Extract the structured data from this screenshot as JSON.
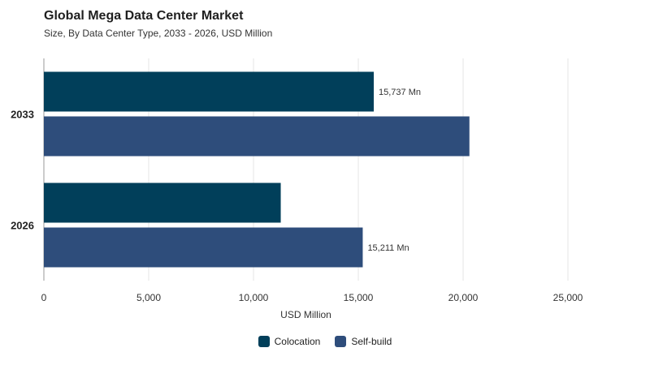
{
  "title": "Global Mega Data Center Market",
  "subtitle": "Size, By Data Center Type, 2033 - 2026, USD Million",
  "colors": {
    "colocation": "#013f5a",
    "selfbuild": "#2e4d7b",
    "grid": "#e6e6e6",
    "axis": "#9a9a9a"
  },
  "chart_data": {
    "type": "bar",
    "orientation": "horizontal",
    "categories": [
      "2033",
      "2026"
    ],
    "series": [
      {
        "name": "Colocation",
        "values": [
          15737,
          11300
        ]
      },
      {
        "name": "Self-build",
        "values": [
          20300,
          15211
        ]
      }
    ],
    "data_labels": [
      {
        "category": "2033",
        "series": "Colocation",
        "text": "15,737 Mn"
      },
      {
        "category": "2026",
        "series": "Self-build",
        "text": "15,211 Mn"
      }
    ],
    "xlabel": "USD Million",
    "xlim": [
      0,
      25000
    ],
    "xticks": [
      0,
      5000,
      10000,
      15000,
      20000,
      25000
    ],
    "xtick_labels": [
      "0",
      "5,000",
      "10,000",
      "15,000",
      "20,000",
      "25,000"
    ],
    "grid": true,
    "legend_position": "bottom-center"
  }
}
